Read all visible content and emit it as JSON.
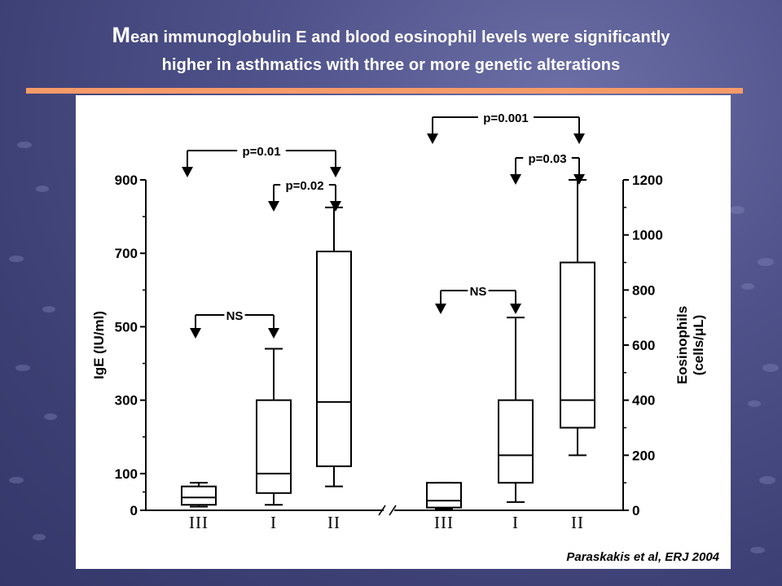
{
  "slide": {
    "title_cap": "M",
    "title_rest_line1": "ean immunoglobulin E and blood eosinophil levels were significantly",
    "title_line2": "higher in asthmatics with three or more genetic alterations",
    "citation": "Paraskakis et al, ERJ 2004",
    "colors": {
      "accent_rule": "#f79a6a",
      "background": "#4f528a",
      "panel": "#ffffff"
    }
  },
  "chart_data": [
    {
      "type": "box",
      "ylabel": "IgE (IU/ml)",
      "yaxis_side": "left",
      "ylim": [
        0,
        900
      ],
      "yticks": [
        0,
        100,
        300,
        500,
        700,
        900
      ],
      "categories": [
        "III",
        "I",
        "II"
      ],
      "boxes": [
        {
          "category": "III",
          "min": 10,
          "q1": 15,
          "median": 35,
          "q3": 65,
          "max": 75
        },
        {
          "category": "I",
          "min": 15,
          "q1": 47,
          "median": 100,
          "q3": 300,
          "max": 440
        },
        {
          "category": "II",
          "min": 65,
          "q1": 120,
          "median": 295,
          "q3": 705,
          "max": 825
        }
      ],
      "comparisons": [
        {
          "from": "III",
          "to": "II",
          "label": "p=0.01",
          "level": "top"
        },
        {
          "from": "I",
          "to": "II",
          "label": "p=0.02",
          "level": "upper"
        },
        {
          "from": "III",
          "to": "I",
          "label": "NS",
          "level": "lower"
        }
      ]
    },
    {
      "type": "box",
      "ylabel": "Eosinophils (cells/μL)",
      "ylabel_line1": "Eosinophils",
      "ylabel_line2": "(cells/μL)",
      "yaxis_side": "right",
      "ylim": [
        0,
        1200
      ],
      "yticks": [
        0,
        200,
        400,
        600,
        800,
        1000,
        1200
      ],
      "categories": [
        "III",
        "I",
        "II"
      ],
      "boxes": [
        {
          "category": "III",
          "min": 5,
          "q1": 10,
          "median": 35,
          "q3": 100,
          "max": 100
        },
        {
          "category": "I",
          "min": 30,
          "q1": 100,
          "median": 200,
          "q3": 400,
          "max": 700
        },
        {
          "category": "II",
          "min": 200,
          "q1": 300,
          "median": 400,
          "q3": 900,
          "max": 1200
        }
      ],
      "comparisons": [
        {
          "from": "III",
          "to": "II",
          "label": "p=0.001",
          "level": "top"
        },
        {
          "from": "I",
          "to": "II",
          "label": "p=0.03",
          "level": "upper"
        },
        {
          "from": "III",
          "to": "I",
          "label": "NS",
          "level": "lower"
        }
      ]
    }
  ]
}
